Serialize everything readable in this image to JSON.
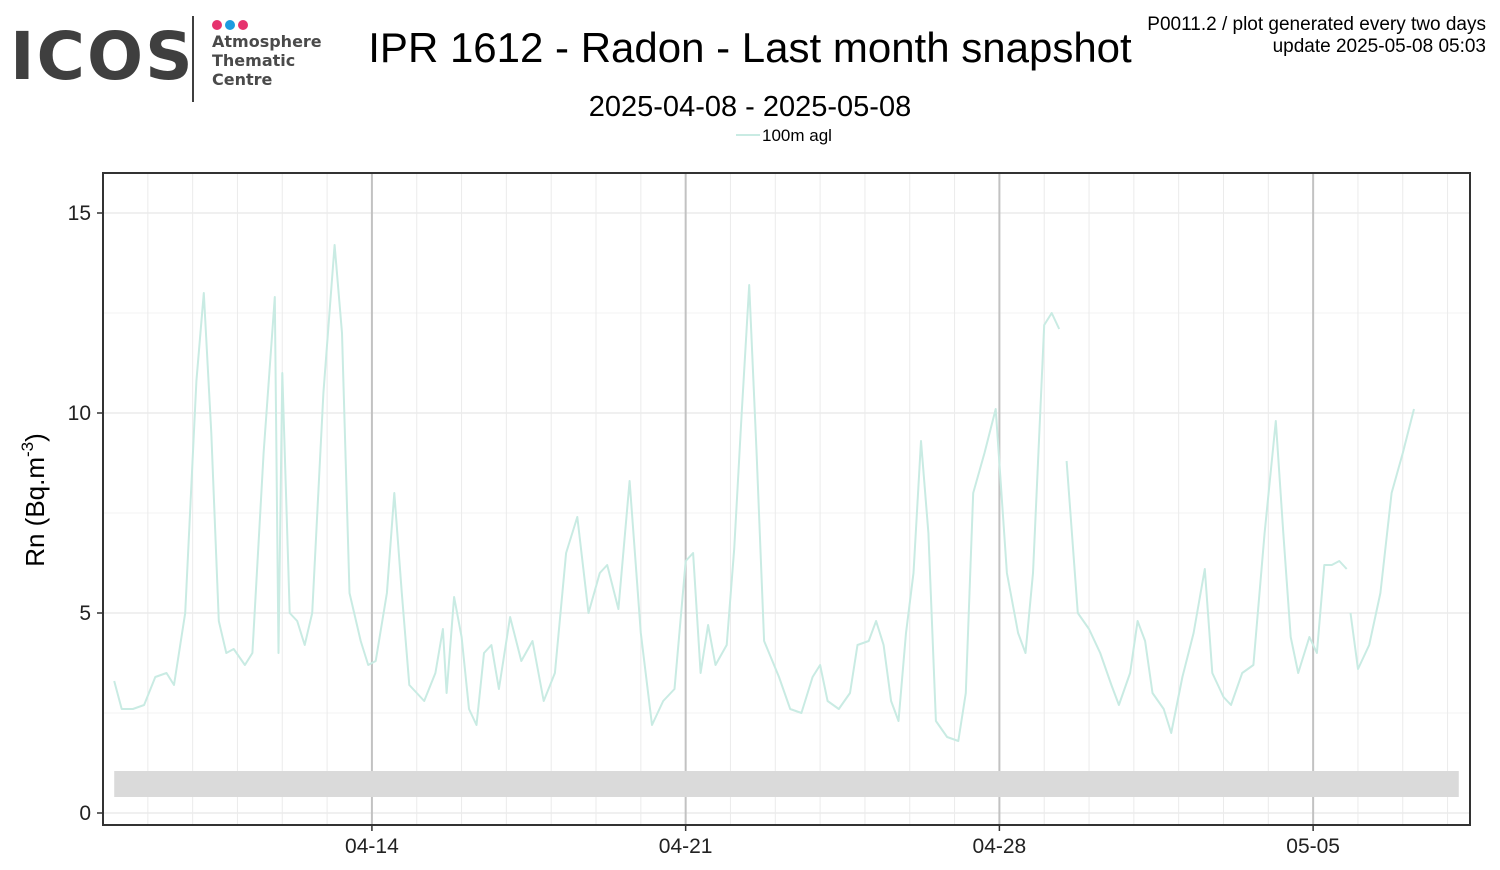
{
  "logo": {
    "wordmark": "ICOS",
    "lines": [
      "Atmosphere",
      "Thematic",
      "Centre"
    ],
    "dot_colors": [
      "#e6336e",
      "#1d9be0",
      "#e6336e"
    ],
    "text_color": "#3f3f3f"
  },
  "header": {
    "title": "IPR 1612 - Radon - Last month snapshot",
    "subtitle": "2025-04-08 - 2025-05-08",
    "plot_id": "P0011.2 / plot generated every two days",
    "update": "update  2025-05-08 05:03"
  },
  "chart_data": {
    "type": "line",
    "ylabel": "Rn (Bq.m",
    "ylabel_superscript": "-3",
    "ylabel_suffix": ")",
    "xlabel": "",
    "legend_position": "top-center",
    "grid": true,
    "ylim": [
      -0.3,
      16
    ],
    "xlim": [
      "2025-04-08 00:00",
      "2025-05-08 12:00"
    ],
    "x_ticks": [
      {
        "x": "2025-04-14",
        "label": "04-14"
      },
      {
        "x": "2025-04-21",
        "label": "04-21"
      },
      {
        "x": "2025-04-28",
        "label": "04-28"
      },
      {
        "x": "2025-05-05",
        "label": "05-05"
      }
    ],
    "y_ticks": [
      0,
      5,
      10,
      15
    ],
    "colors": {
      "series": "#c9ebe3",
      "band": "#dadada",
      "axis": "#333333",
      "major_grid": "#c2c2c2",
      "grid": "#ebebeb"
    },
    "band": {
      "x_start": "2025-04-08 06:00",
      "x_end": "2025-05-08 06:00",
      "y_low": 0.4,
      "y_high": 1.05
    },
    "series": [
      {
        "name": "100m agl",
        "segments": [
          [
            [
              "2025-04-08 06:00",
              3.3
            ],
            [
              "2025-04-08 10:00",
              2.6
            ],
            [
              "2025-04-08 16:00",
              2.6
            ],
            [
              "2025-04-08 22:00",
              2.7
            ],
            [
              "2025-04-09 04:00",
              3.4
            ],
            [
              "2025-04-09 10:00",
              3.5
            ],
            [
              "2025-04-09 14:00",
              3.2
            ],
            [
              "2025-04-09 20:00",
              5.0
            ],
            [
              "2025-04-10 02:00",
              10.8
            ],
            [
              "2025-04-10 06:00",
              13.0
            ],
            [
              "2025-04-10 10:00",
              9.5
            ],
            [
              "2025-04-10 14:00",
              4.8
            ],
            [
              "2025-04-10 18:00",
              4.0
            ],
            [
              "2025-04-10 22:00",
              4.1
            ],
            [
              "2025-04-11 04:00",
              3.7
            ],
            [
              "2025-04-11 08:00",
              4.0
            ],
            [
              "2025-04-11 14:00",
              9.0
            ],
            [
              "2025-04-11 20:00",
              12.9
            ],
            [
              "2025-04-11 22:00",
              4.0
            ],
            [
              "2025-04-12 00:00",
              11.0
            ],
            [
              "2025-04-12 04:00",
              5.0
            ],
            [
              "2025-04-12 08:00",
              4.8
            ],
            [
              "2025-04-12 12:00",
              4.2
            ],
            [
              "2025-04-12 16:00",
              5.0
            ],
            [
              "2025-04-12 22:00",
              10.5
            ],
            [
              "2025-04-13 04:00",
              14.2
            ],
            [
              "2025-04-13 08:00",
              12.0
            ],
            [
              "2025-04-13 12:00",
              5.5
            ],
            [
              "2025-04-13 18:00",
              4.3
            ],
            [
              "2025-04-13 22:00",
              3.7
            ],
            [
              "2025-04-14 02:00",
              3.8
            ],
            [
              "2025-04-14 08:00",
              5.5
            ],
            [
              "2025-04-14 12:00",
              8.0
            ],
            [
              "2025-04-14 16:00",
              5.5
            ],
            [
              "2025-04-14 20:00",
              3.2
            ],
            [
              "2025-04-15 04:00",
              2.8
            ],
            [
              "2025-04-15 10:00",
              3.5
            ],
            [
              "2025-04-15 14:00",
              4.6
            ],
            [
              "2025-04-15 16:00",
              3.0
            ],
            [
              "2025-04-15 20:00",
              5.4
            ],
            [
              "2025-04-16 00:00",
              4.4
            ],
            [
              "2025-04-16 04:00",
              2.6
            ],
            [
              "2025-04-16 08:00",
              2.2
            ],
            [
              "2025-04-16 12:00",
              4.0
            ],
            [
              "2025-04-16 16:00",
              4.2
            ],
            [
              "2025-04-16 20:00",
              3.1
            ],
            [
              "2025-04-17 02:00",
              4.9
            ],
            [
              "2025-04-17 08:00",
              3.8
            ],
            [
              "2025-04-17 14:00",
              4.3
            ],
            [
              "2025-04-17 20:00",
              2.8
            ],
            [
              "2025-04-18 02:00",
              3.5
            ],
            [
              "2025-04-18 08:00",
              6.5
            ],
            [
              "2025-04-18 14:00",
              7.4
            ],
            [
              "2025-04-18 20:00",
              5.0
            ],
            [
              "2025-04-19 02:00",
              6.0
            ],
            [
              "2025-04-19 06:00",
              6.2
            ],
            [
              "2025-04-19 12:00",
              5.1
            ],
            [
              "2025-04-19 18:00",
              8.3
            ],
            [
              "2025-04-20 00:00",
              4.5
            ],
            [
              "2025-04-20 06:00",
              2.2
            ],
            [
              "2025-04-20 12:00",
              2.8
            ],
            [
              "2025-04-20 18:00",
              3.1
            ],
            [
              "2025-04-21 00:00",
              6.3
            ],
            [
              "2025-04-21 04:00",
              6.5
            ],
            [
              "2025-04-21 08:00",
              3.5
            ],
            [
              "2025-04-21 12:00",
              4.7
            ],
            [
              "2025-04-21 16:00",
              3.7
            ],
            [
              "2025-04-21 22:00",
              4.2
            ],
            [
              "2025-04-22 02:00",
              6.6
            ],
            [
              "2025-04-22 06:00",
              10.0
            ],
            [
              "2025-04-22 10:00",
              13.2
            ],
            [
              "2025-04-22 14:00",
              9.0
            ],
            [
              "2025-04-22 18:00",
              4.3
            ],
            [
              "2025-04-23 02:00",
              3.4
            ],
            [
              "2025-04-23 08:00",
              2.6
            ],
            [
              "2025-04-23 14:00",
              2.5
            ],
            [
              "2025-04-23 20:00",
              3.4
            ],
            [
              "2025-04-24 00:00",
              3.7
            ],
            [
              "2025-04-24 04:00",
              2.8
            ],
            [
              "2025-04-24 10:00",
              2.6
            ],
            [
              "2025-04-24 16:00",
              3.0
            ],
            [
              "2025-04-24 20:00",
              4.2
            ],
            [
              "2025-04-25 02:00",
              4.3
            ],
            [
              "2025-04-25 06:00",
              4.8
            ],
            [
              "2025-04-25 10:00",
              4.2
            ],
            [
              "2025-04-25 14:00",
              2.8
            ],
            [
              "2025-04-25 18:00",
              2.3
            ],
            [
              "2025-04-25 22:00",
              4.5
            ],
            [
              "2025-04-26 02:00",
              6.0
            ],
            [
              "2025-04-26 06:00",
              9.3
            ],
            [
              "2025-04-26 10:00",
              7.0
            ],
            [
              "2025-04-26 14:00",
              2.3
            ],
            [
              "2025-04-26 20:00",
              1.9
            ],
            [
              "2025-04-27 02:00",
              1.8
            ],
            [
              "2025-04-27 06:00",
              3.0
            ],
            [
              "2025-04-27 10:00",
              8.0
            ],
            [
              "2025-04-27 16:00",
              9.0
            ],
            [
              "2025-04-27 22:00",
              10.1
            ],
            [
              "2025-04-28 04:00",
              6.0
            ],
            [
              "2025-04-28 10:00",
              4.5
            ],
            [
              "2025-04-28 14:00",
              4.0
            ],
            [
              "2025-04-28 18:00",
              6.0
            ],
            [
              "2025-04-29 00:00",
              12.2
            ],
            [
              "2025-04-29 04:00",
              12.5
            ],
            [
              "2025-04-29 08:00",
              12.1
            ]
          ],
          [
            [
              "2025-04-29 12:00",
              8.8
            ],
            [
              "2025-04-29 18:00",
              5.0
            ],
            [
              "2025-04-30 00:00",
              4.6
            ],
            [
              "2025-04-30 06:00",
              4.0
            ],
            [
              "2025-04-30 12:00",
              3.2
            ],
            [
              "2025-04-30 16:00",
              2.7
            ],
            [
              "2025-04-30 22:00",
              3.5
            ],
            [
              "2025-05-01 02:00",
              4.8
            ],
            [
              "2025-05-01 06:00",
              4.3
            ],
            [
              "2025-05-01 10:00",
              3.0
            ],
            [
              "2025-05-01 16:00",
              2.6
            ],
            [
              "2025-05-01 20:00",
              2.0
            ],
            [
              "2025-05-02 02:00",
              3.4
            ],
            [
              "2025-05-02 08:00",
              4.5
            ],
            [
              "2025-05-02 14:00",
              6.1
            ],
            [
              "2025-05-02 18:00",
              3.5
            ],
            [
              "2025-05-03 00:00",
              2.9
            ],
            [
              "2025-05-03 04:00",
              2.7
            ],
            [
              "2025-05-03 10:00",
              3.5
            ],
            [
              "2025-05-03 16:00",
              3.7
            ],
            [
              "2025-05-03 22:00",
              7.0
            ],
            [
              "2025-05-04 04:00",
              9.8
            ],
            [
              "2025-05-04 08:00",
              7.0
            ],
            [
              "2025-05-04 12:00",
              4.4
            ],
            [
              "2025-05-04 16:00",
              3.5
            ],
            [
              "2025-05-04 22:00",
              4.4
            ],
            [
              "2025-05-05 02:00",
              4.0
            ],
            [
              "2025-05-05 06:00",
              6.2
            ],
            [
              "2025-05-05 10:00",
              6.2
            ],
            [
              "2025-05-05 14:00",
              6.3
            ],
            [
              "2025-05-05 18:00",
              6.1
            ]
          ],
          [
            [
              "2025-05-05 20:00",
              5.0
            ],
            [
              "2025-05-06 00:00",
              3.6
            ],
            [
              "2025-05-06 06:00",
              4.2
            ],
            [
              "2025-05-06 12:00",
              5.5
            ],
            [
              "2025-05-06 18:00",
              8.0
            ],
            [
              "2025-05-07 00:00",
              9.0
            ],
            [
              "2025-05-07 06:00",
              10.1
            ]
          ]
        ]
      }
    ]
  }
}
